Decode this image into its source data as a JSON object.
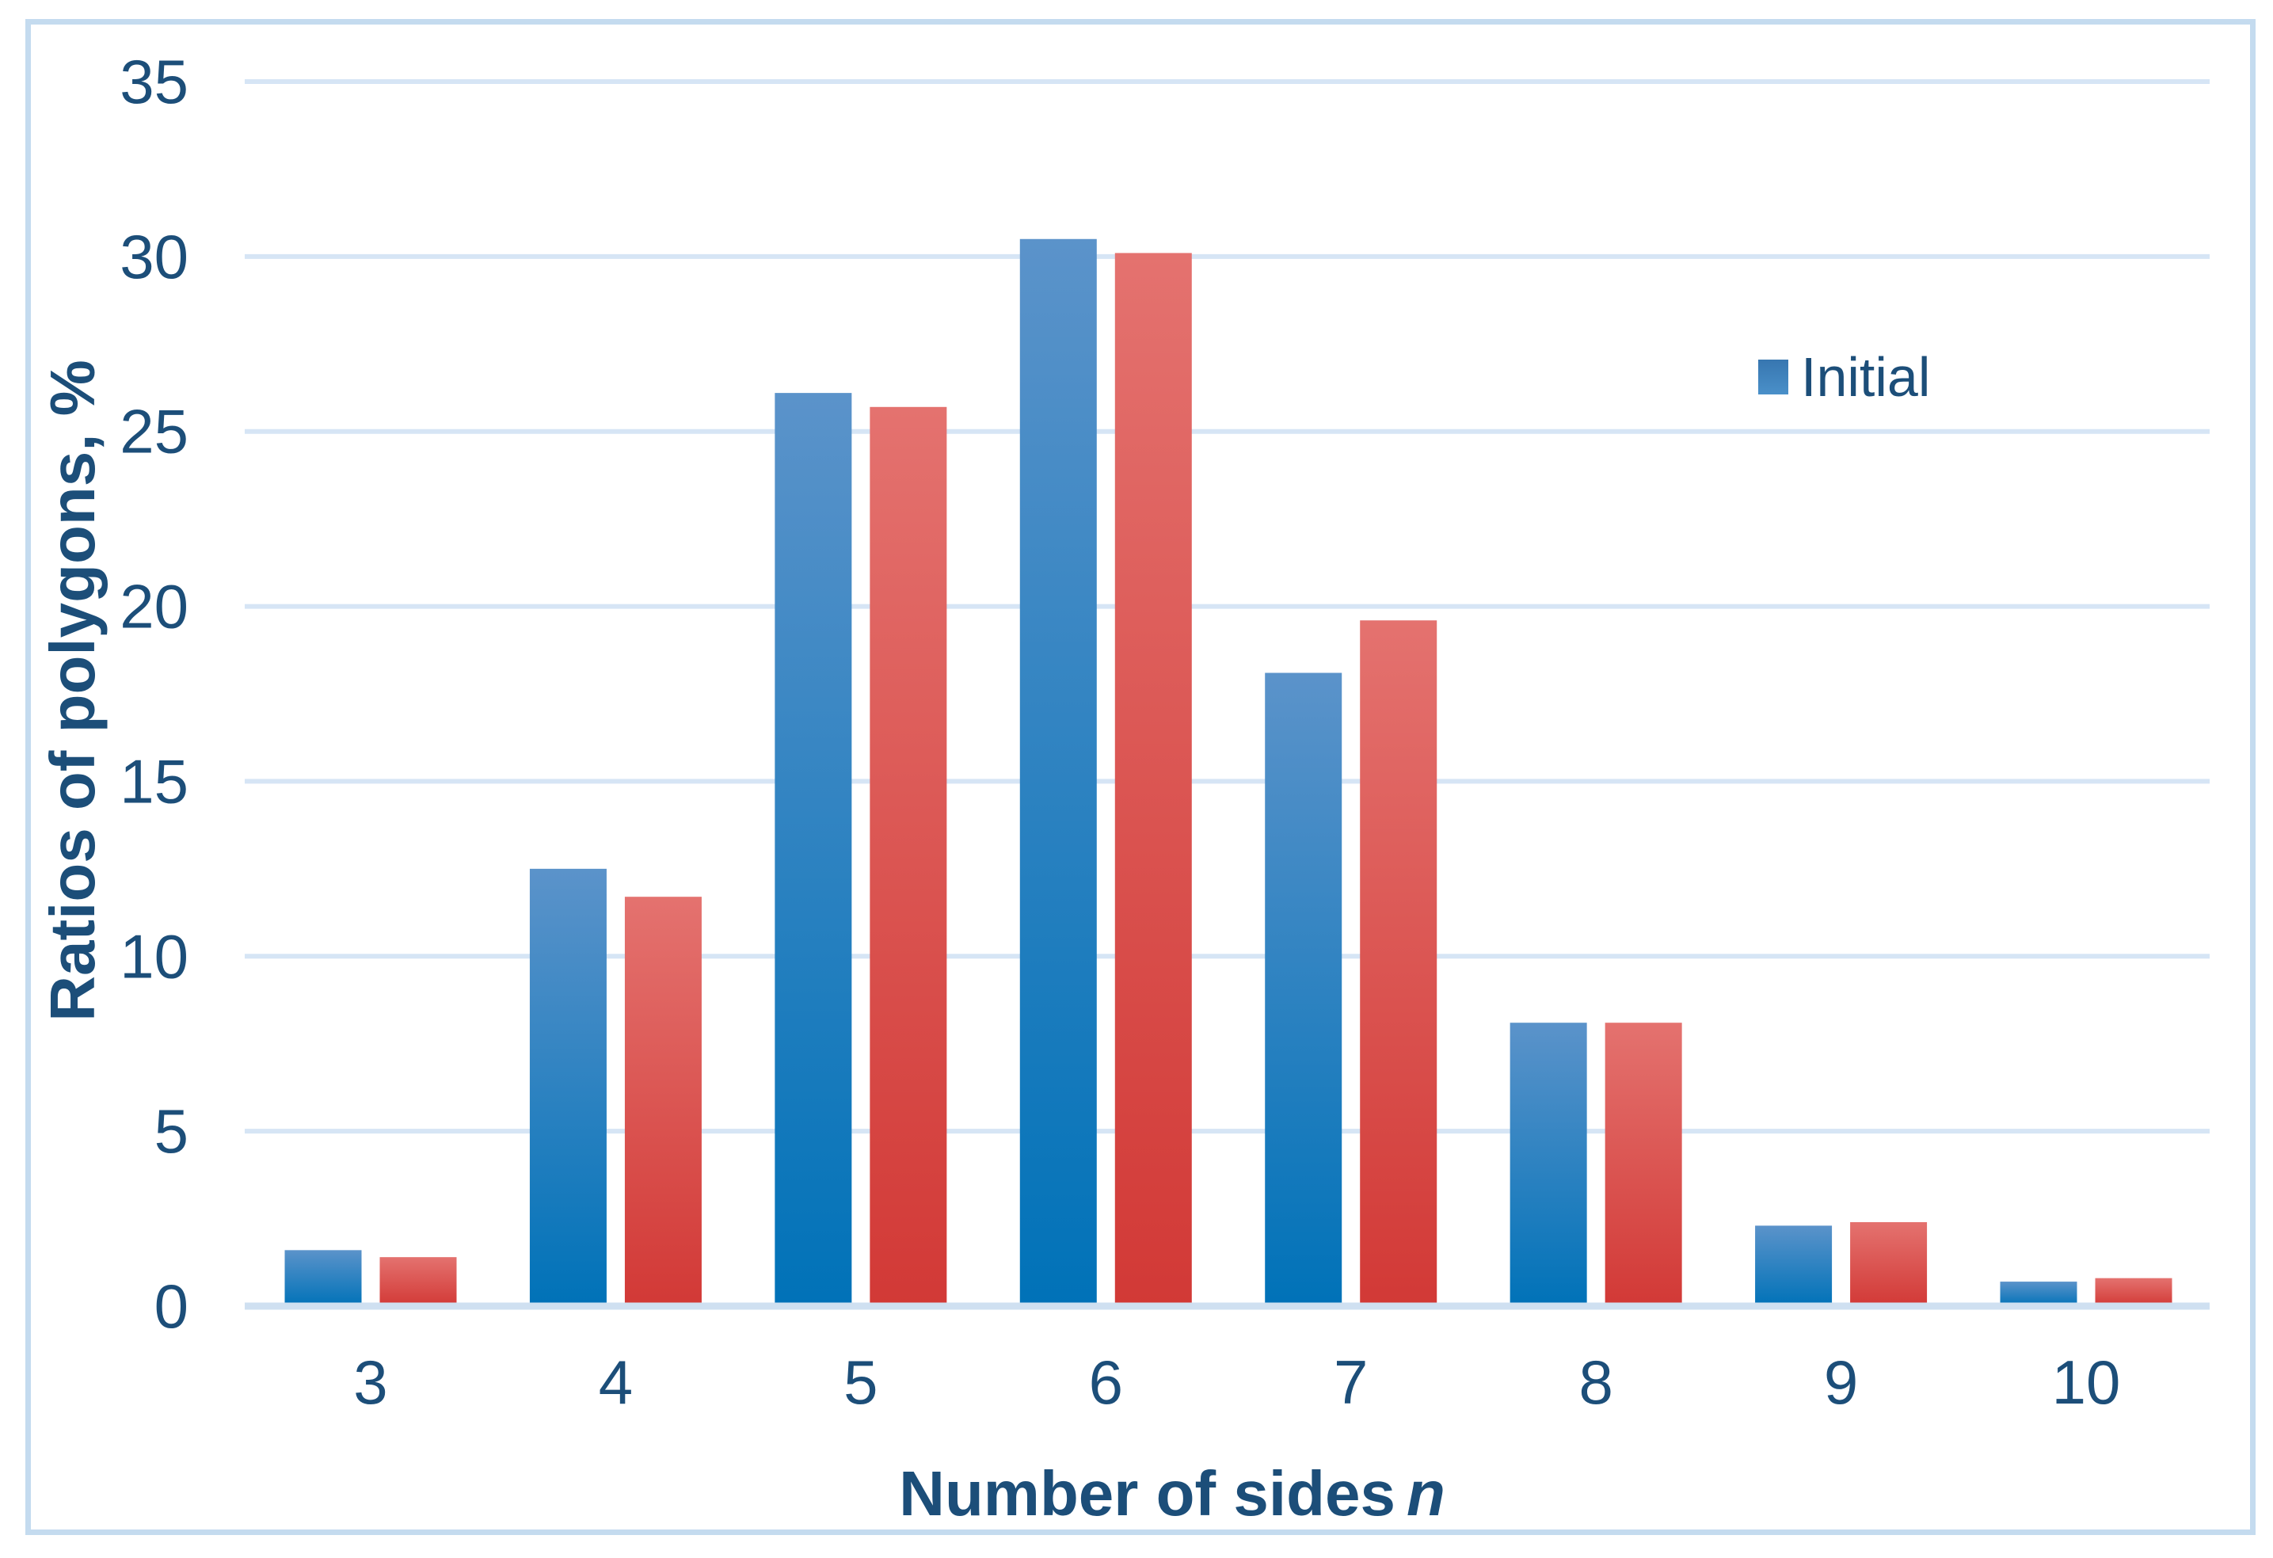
{
  "chart_data": {
    "type": "bar",
    "title": "",
    "categories": [
      "3",
      "4",
      "5",
      "6",
      "7",
      "8",
      "9",
      "10"
    ],
    "series": [
      {
        "name": "Initial",
        "color_top": "#5b93ca",
        "color_bottom": "#0072b8",
        "values": [
          1.6,
          12.5,
          26.1,
          30.5,
          18.1,
          8.1,
          2.3,
          0.7
        ]
      },
      {
        "name": "",
        "color_top": "#e4726f",
        "color_bottom": "#d23936",
        "values": [
          1.4,
          11.7,
          25.7,
          30.1,
          19.6,
          8.1,
          2.4,
          0.8
        ]
      }
    ],
    "xlabel": "Number of sides",
    "xlabel_italic": "n",
    "ylabel": "Ratios of polygons, %",
    "ylim": [
      0,
      35
    ],
    "yticks": [
      0,
      5,
      10,
      15,
      20,
      25,
      30,
      35
    ],
    "grid": true,
    "legend": {
      "position": "top-right",
      "entries": [
        "Initial"
      ]
    },
    "colors": {
      "text": "#1c4e79",
      "gridline": "#d6e5f5",
      "axis_line": "#cfe0f1",
      "frame_border": "#c4dbef"
    }
  }
}
